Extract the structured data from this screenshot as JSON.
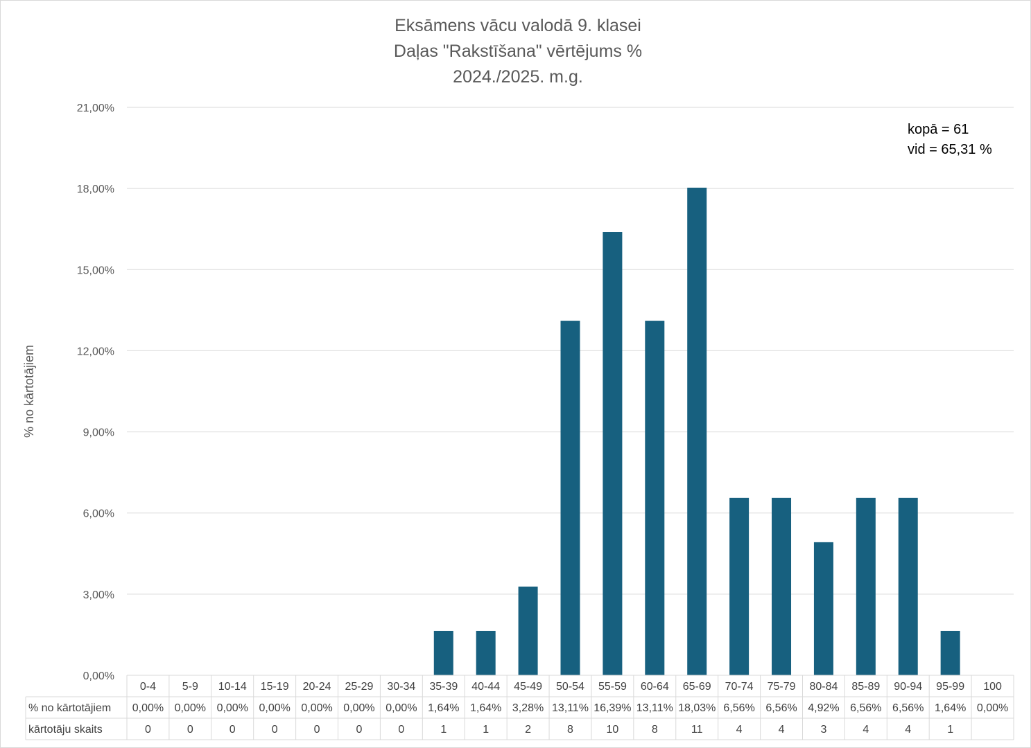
{
  "chart_data": {
    "type": "bar",
    "title_lines": [
      "Eksāmens vācu valodā 9. klasei",
      "Daļas \"Rakstīšana\" vērtējums %",
      "2024./2025. m.g."
    ],
    "ylabel": "% no kārtotājiem",
    "xlabel": "",
    "ylim": [
      0,
      21
    ],
    "yticks": [
      0,
      3,
      6,
      9,
      12,
      15,
      18,
      21
    ],
    "ytick_labels": [
      "0,00%",
      "3,00%",
      "6,00%",
      "9,00%",
      "12,00%",
      "15,00%",
      "18,00%",
      "21,00%"
    ],
    "grid": true,
    "legend": "none",
    "bar_color": "#17607f",
    "categories": [
      "0-4",
      "5-9",
      "10-14",
      "15-19",
      "20-24",
      "25-29",
      "30-34",
      "35-39",
      "40-44",
      "45-49",
      "50-54",
      "55-59",
      "60-64",
      "65-69",
      "70-74",
      "75-79",
      "80-84",
      "85-89",
      "90-94",
      "95-99",
      "100"
    ],
    "values": [
      0,
      0,
      0,
      0,
      0,
      0,
      0,
      1.64,
      1.64,
      3.28,
      13.11,
      16.39,
      13.11,
      18.03,
      6.56,
      6.56,
      4.92,
      6.56,
      6.56,
      1.64,
      0
    ],
    "table": {
      "rows": [
        {
          "label": "% no kārtotājiem",
          "cells": [
            "0,00%",
            "0,00%",
            "0,00%",
            "0,00%",
            "0,00%",
            "0,00%",
            "0,00%",
            "1,64%",
            "1,64%",
            "3,28%",
            "13,11%",
            "16,39%",
            "13,11%",
            "18,03%",
            "6,56%",
            "6,56%",
            "4,92%",
            "6,56%",
            "6,56%",
            "1,64%",
            "0,00%"
          ]
        },
        {
          "label": "kārtotāju skaits",
          "cells": [
            "0",
            "0",
            "0",
            "0",
            "0",
            "0",
            "0",
            "1",
            "1",
            "2",
            "8",
            "10",
            "8",
            "11",
            "4",
            "4",
            "3",
            "4",
            "4",
            "1",
            ""
          ]
        }
      ]
    },
    "annotations": [
      "kopā = 61",
      "vid = 65,31 %"
    ]
  }
}
